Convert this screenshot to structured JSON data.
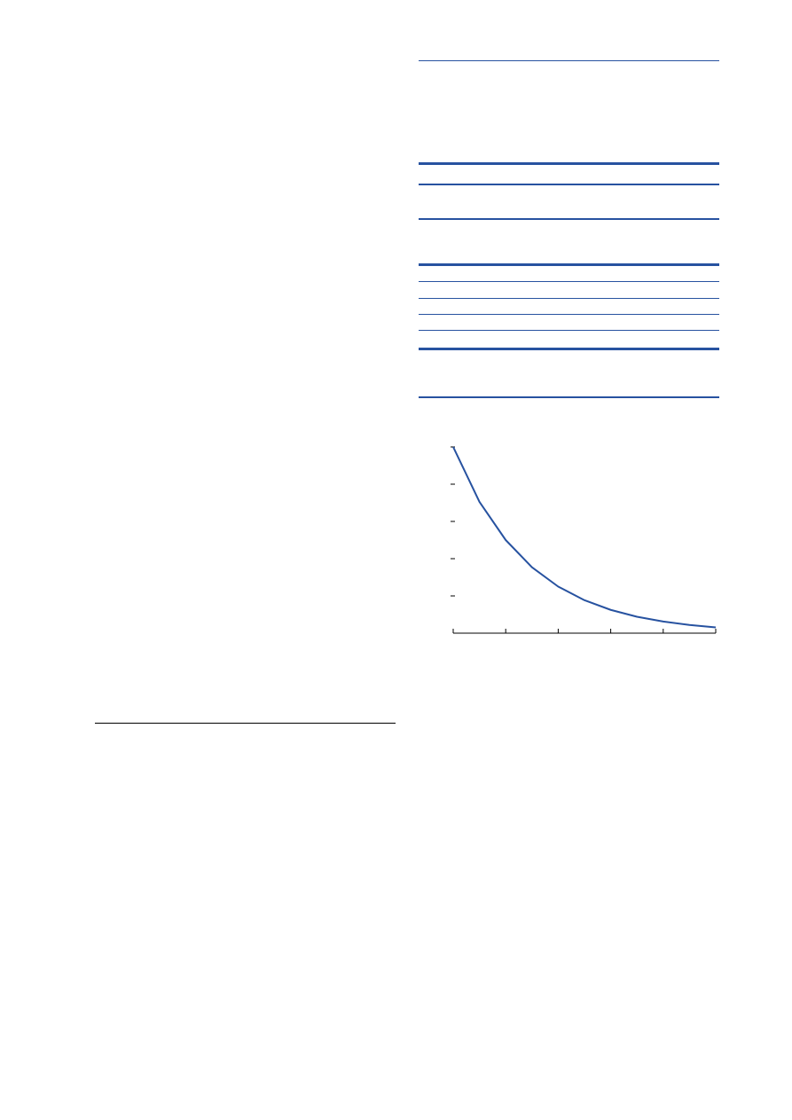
{
  "page": {
    "accent_color": "#2752a0",
    "footnote_rule_color": "#000000"
  },
  "chart_data": {
    "type": "line",
    "title": "",
    "xlabel": "",
    "ylabel": "",
    "x": [
      0,
      0.5,
      1,
      1.5,
      2,
      2.5,
      3,
      3.5,
      4,
      4.5,
      5
    ],
    "series": [
      {
        "values": [
          1.0,
          0.705,
          0.5,
          0.354,
          0.25,
          0.177,
          0.125,
          0.088,
          0.0625,
          0.044,
          0.0312
        ]
      }
    ],
    "xlim": [
      0,
      5
    ],
    "ylim": [
      0,
      1
    ],
    "x_ticks": [
      0,
      1,
      2,
      3,
      4,
      5
    ],
    "y_ticks": [
      0.2,
      0.4,
      0.6,
      0.8,
      1.0
    ],
    "grid": false,
    "line_color": "#2752a0"
  }
}
